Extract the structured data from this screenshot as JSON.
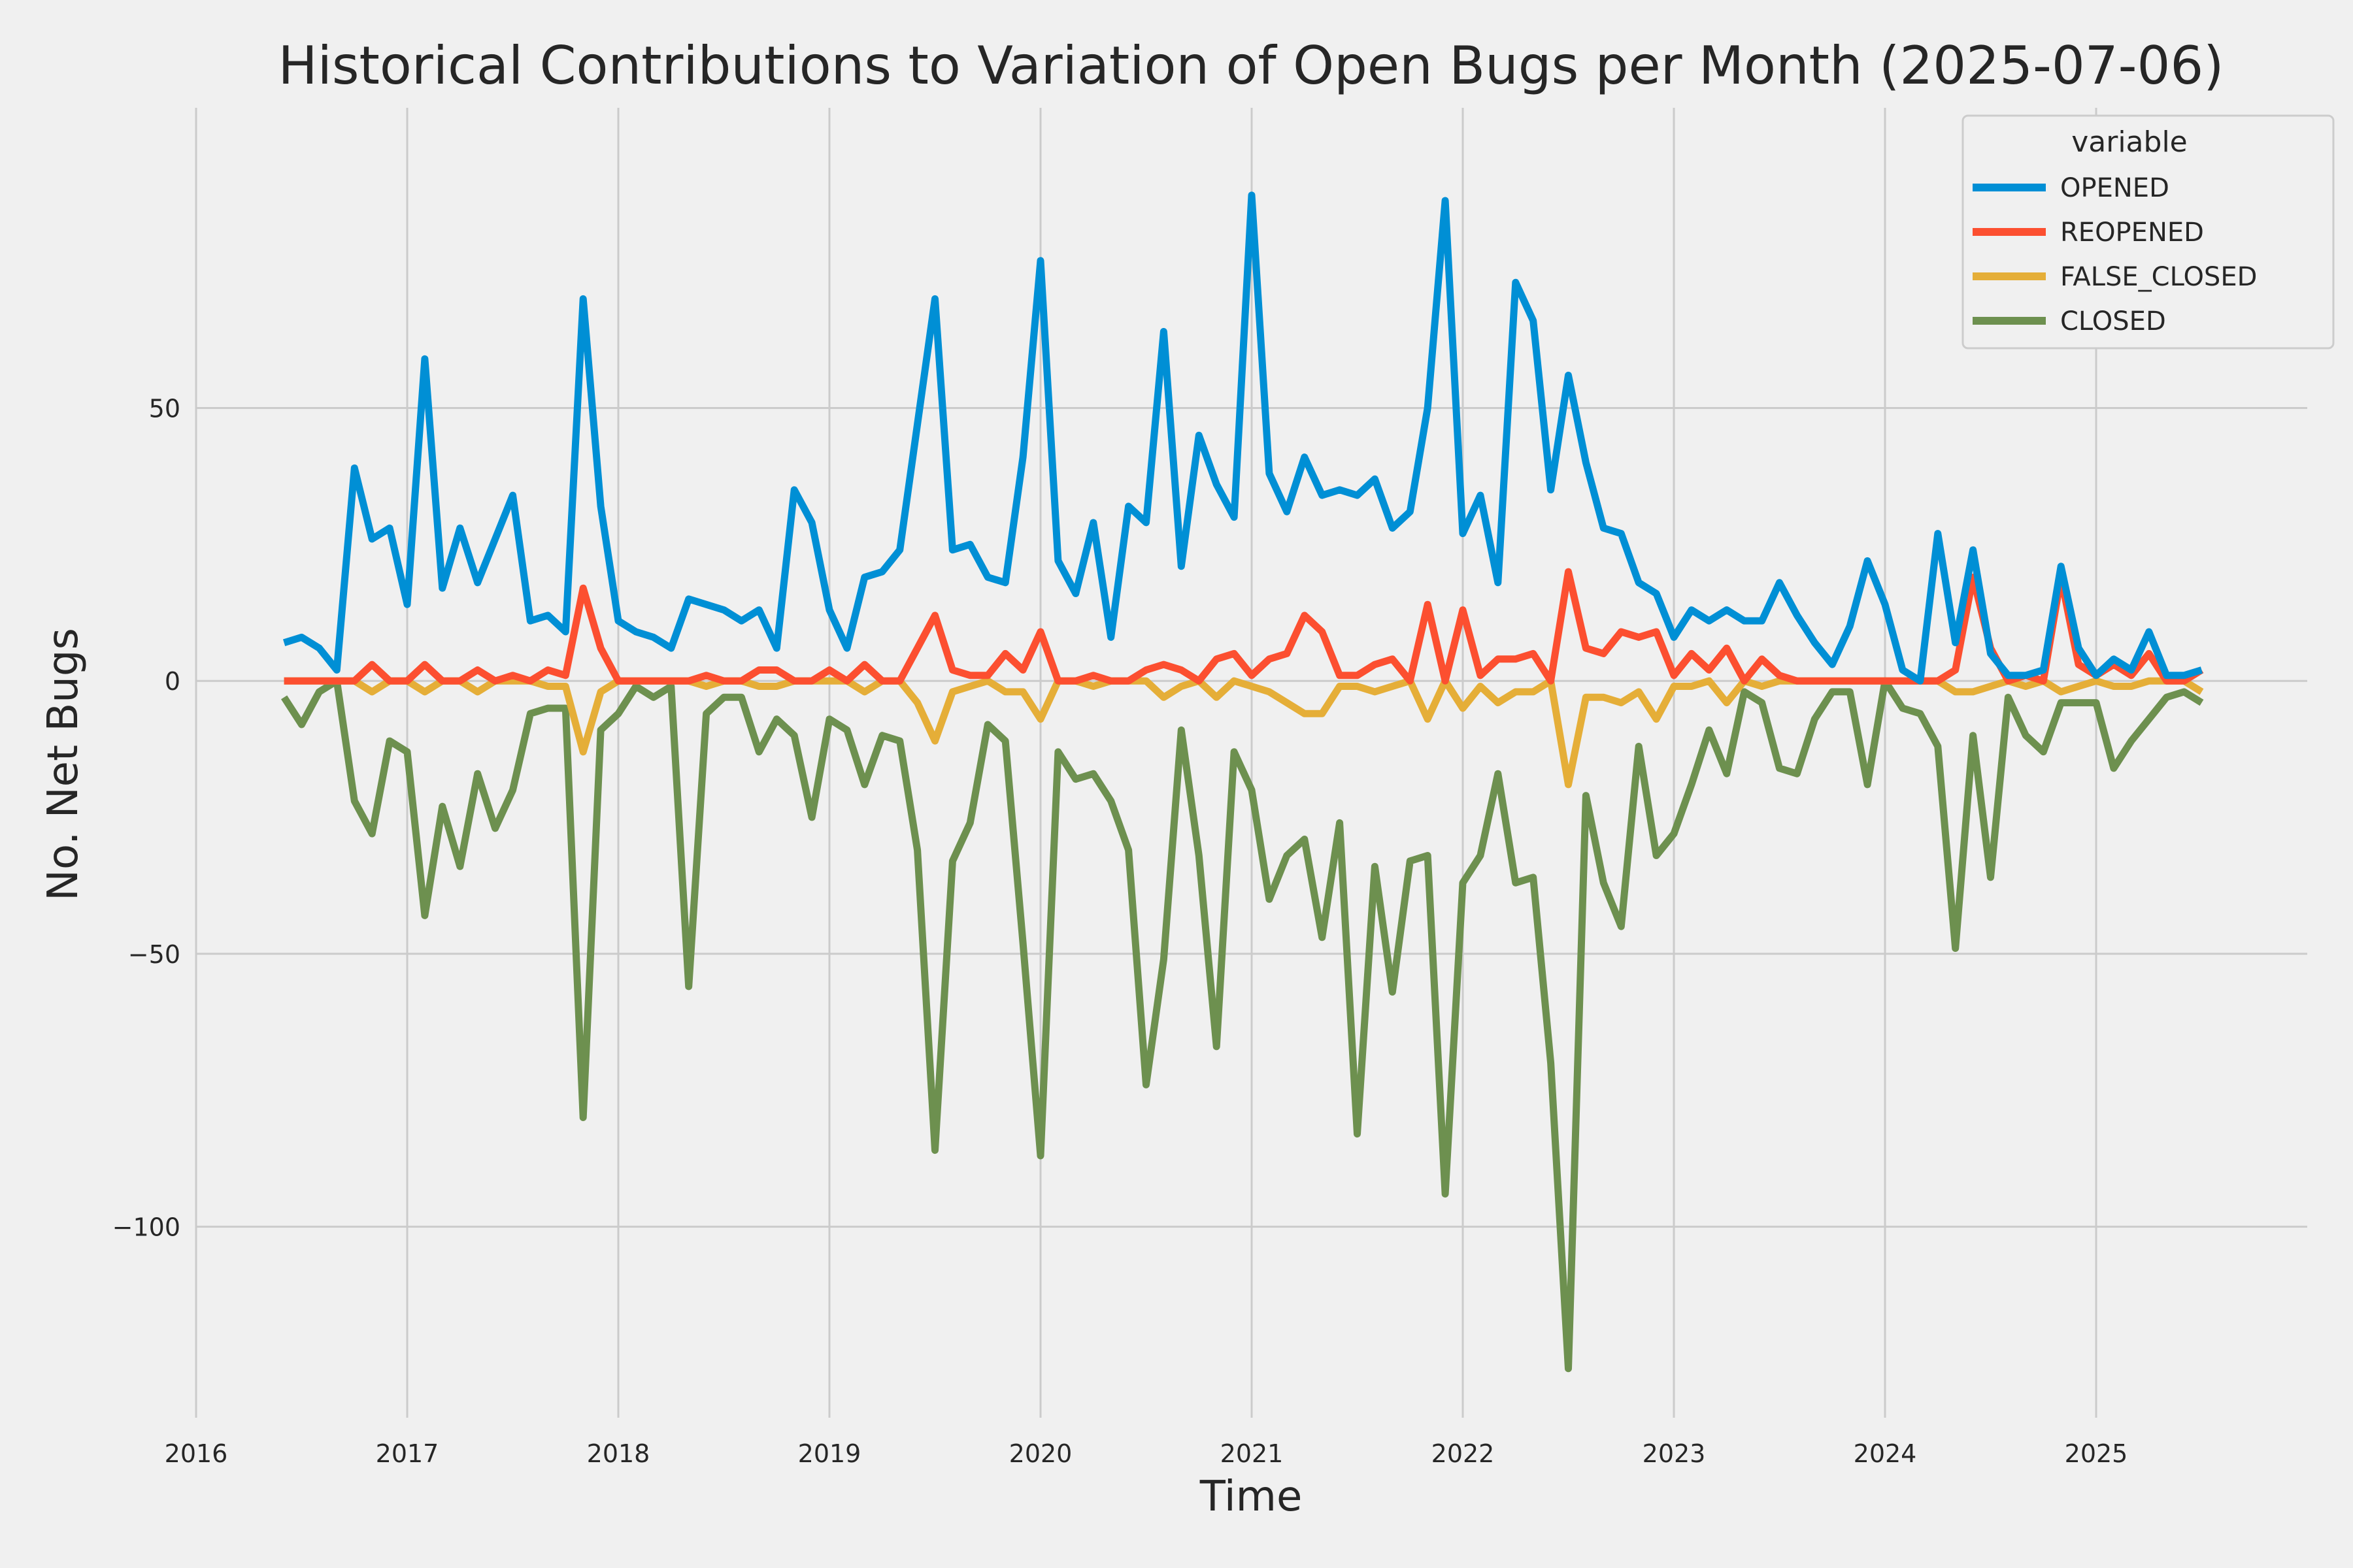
{
  "chart_data": {
    "type": "line",
    "title": "Historical Contributions to Variation of Open Bugs per Month (2025-07-06)",
    "xlabel": "Time",
    "ylabel": "No. Net Bugs",
    "x_start": "2016-06",
    "x_step": "month",
    "xlim": [
      "2016-01",
      "2026-01"
    ],
    "ylim": [
      -135,
      105
    ],
    "xticks": [
      "2016",
      "2017",
      "2018",
      "2019",
      "2020",
      "2021",
      "2022",
      "2023",
      "2024",
      "2025"
    ],
    "yticks": [
      50,
      0,
      -50,
      -100
    ],
    "ytick_labels": [
      "50",
      "0",
      "−50",
      "−100"
    ],
    "grid": true,
    "legend": {
      "title": "variable",
      "position": "top-right"
    },
    "series": [
      {
        "name": "OPENED",
        "color": "#008fd5",
        "values": [
          7,
          8,
          6,
          2,
          39,
          26,
          28,
          14,
          59,
          17,
          28,
          18,
          26,
          34,
          11,
          12,
          9,
          70,
          32,
          11,
          9,
          8,
          6,
          15,
          14,
          13,
          11,
          13,
          6,
          35,
          29,
          13,
          6,
          19,
          20,
          24,
          47,
          70,
          24,
          25,
          19,
          18,
          41,
          77,
          22,
          16,
          29,
          8,
          32,
          29,
          64,
          21,
          45,
          36,
          30,
          89,
          38,
          31,
          41,
          34,
          35,
          34,
          37,
          28,
          31,
          50,
          88,
          27,
          34,
          18,
          73,
          66,
          35,
          56,
          40,
          28,
          27,
          18,
          16,
          8,
          13,
          11,
          13,
          11,
          11,
          18,
          12,
          7,
          3,
          10,
          22,
          14,
          2,
          0,
          27,
          7,
          24,
          5,
          1,
          1,
          2,
          21,
          6,
          1,
          4,
          2,
          9,
          1,
          1,
          2
        ]
      },
      {
        "name": "REOPENED",
        "color": "#fc4f30",
        "values": [
          0,
          0,
          0,
          0,
          0,
          3,
          0,
          0,
          3,
          0,
          0,
          2,
          0,
          1,
          0,
          2,
          1,
          17,
          6,
          0,
          0,
          0,
          0,
          0,
          1,
          0,
          0,
          2,
          2,
          0,
          0,
          2,
          0,
          3,
          0,
          0,
          6,
          12,
          2,
          1,
          1,
          5,
          2,
          9,
          0,
          0,
          1,
          0,
          0,
          2,
          3,
          2,
          0,
          4,
          5,
          1,
          4,
          5,
          12,
          9,
          1,
          1,
          3,
          4,
          0,
          14,
          0,
          13,
          1,
          4,
          4,
          5,
          0,
          20,
          6,
          5,
          9,
          8,
          9,
          1,
          5,
          2,
          6,
          0,
          4,
          1,
          0,
          0,
          0,
          0,
          0,
          0,
          0,
          0,
          0,
          2,
          19,
          6,
          0,
          1,
          0,
          19,
          3,
          1,
          3,
          1,
          5,
          0,
          0,
          2
        ]
      },
      {
        "name": "FALSE_CLOSED",
        "color": "#e5ae38",
        "values": [
          0,
          0,
          0,
          0,
          0,
          -2,
          0,
          0,
          -2,
          0,
          0,
          -2,
          0,
          0,
          0,
          -1,
          -1,
          -13,
          -2,
          0,
          0,
          0,
          0,
          0,
          -1,
          0,
          0,
          -1,
          -1,
          0,
          0,
          0,
          0,
          -2,
          0,
          0,
          -4,
          -11,
          -2,
          -1,
          0,
          -2,
          -2,
          -7,
          0,
          0,
          -1,
          0,
          0,
          0,
          -3,
          -1,
          0,
          -3,
          0,
          -1,
          -2,
          -4,
          -6,
          -6,
          -1,
          -1,
          -2,
          -1,
          0,
          -7,
          0,
          -5,
          -1,
          -4,
          -2,
          -2,
          0,
          -19,
          -3,
          -3,
          -4,
          -2,
          -7,
          -1,
          -1,
          0,
          -4,
          0,
          -1,
          0,
          0,
          0,
          0,
          0,
          0,
          0,
          0,
          0,
          0,
          -2,
          -2,
          -1,
          0,
          -1,
          0,
          -2,
          -1,
          0,
          -1,
          -1,
          0,
          0,
          0,
          -2
        ]
      },
      {
        "name": "CLOSED",
        "color": "#6d904f",
        "values": [
          -3,
          -8,
          -2,
          0,
          -22,
          -28,
          -11,
          -13,
          -43,
          -23,
          -34,
          -17,
          -27,
          -20,
          -6,
          -5,
          -5,
          -80,
          -9,
          -6,
          -1,
          -3,
          -1,
          -56,
          -6,
          -3,
          -3,
          -13,
          -7,
          -10,
          -25,
          -7,
          -9,
          -19,
          -10,
          -11,
          -31,
          -86,
          -33,
          -26,
          -8,
          -11,
          -48,
          -87,
          -13,
          -18,
          -17,
          -22,
          -31,
          -74,
          -51,
          -9,
          -32,
          -67,
          -13,
          -20,
          -40,
          -32,
          -29,
          -47,
          -26,
          -83,
          -34,
          -57,
          -33,
          -32,
          -94,
          -37,
          -32,
          -17,
          -37,
          -36,
          -70,
          -126,
          -21,
          -37,
          -45,
          -12,
          -32,
          -28,
          -19,
          -9,
          -17,
          -2,
          -4,
          -16,
          -17,
          -7,
          -2,
          -2,
          -19,
          0,
          -5,
          -6,
          -12,
          -49,
          -10,
          -36,
          -3,
          -10,
          -13,
          -4,
          -4,
          -4,
          -16,
          -11,
          -7,
          -3,
          -2,
          -4
        ]
      }
    ]
  }
}
